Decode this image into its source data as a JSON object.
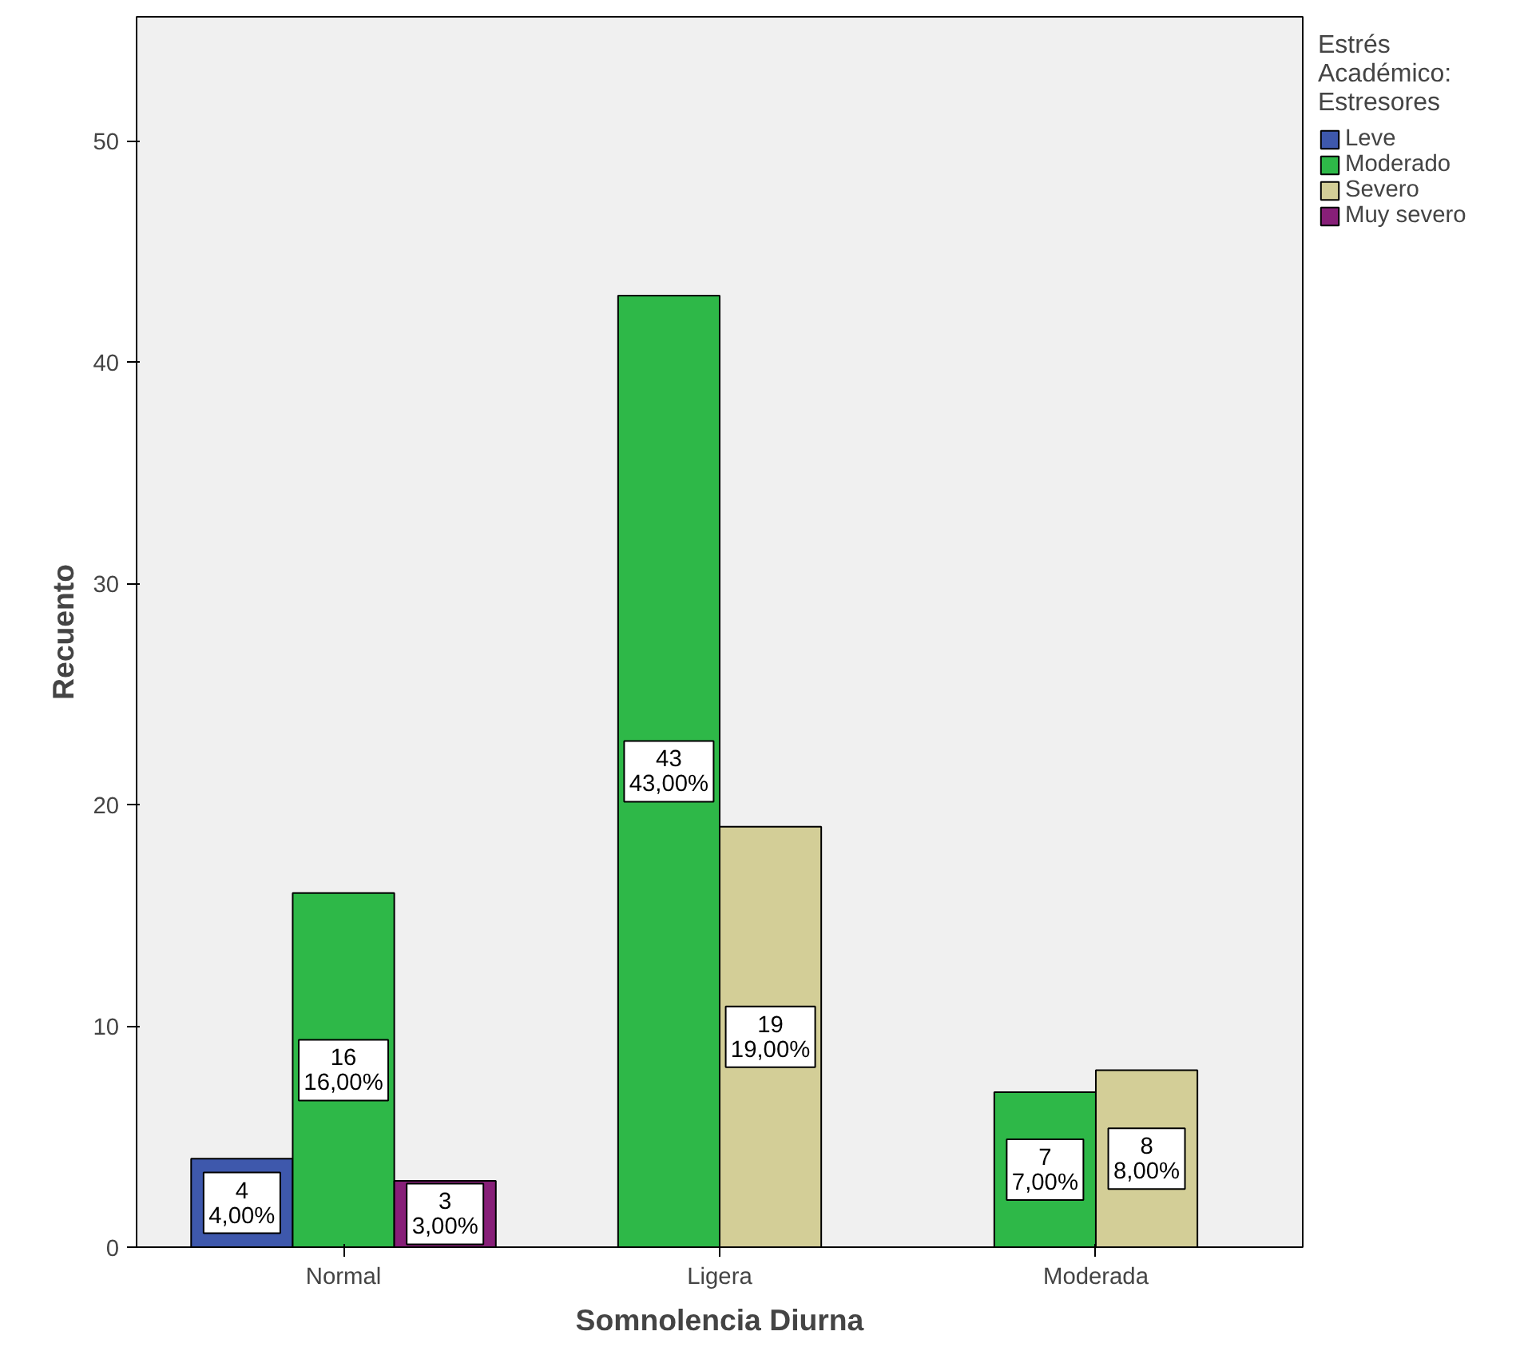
{
  "chart_data": {
    "type": "bar",
    "xlabel": "Somnolencia Diurna",
    "ylabel": "Recuento",
    "legend_title": "Estrés Académico: Estresores",
    "categories": [
      "Normal",
      "Ligera",
      "Moderada"
    ],
    "series": [
      {
        "name": "Leve",
        "color": "#3e58ac",
        "values": [
          4,
          null,
          null
        ],
        "value_labels": [
          "4\n4,00%",
          null,
          null
        ]
      },
      {
        "name": "Moderado",
        "color": "#2eb848",
        "values": [
          16,
          43,
          7
        ],
        "value_labels": [
          "16\n16,00%",
          "43\n43,00%",
          "7\n7,00%"
        ]
      },
      {
        "name": "Severo",
        "color": "#d3ce97",
        "values": [
          null,
          19,
          8
        ],
        "value_labels": [
          null,
          "19\n19,00%",
          "8\n8,00%"
        ]
      },
      {
        "name": "Muy severo",
        "color": "#871f78",
        "values": [
          3,
          null,
          null
        ],
        "value_labels": [
          "3\n3,00%",
          null,
          null
        ]
      }
    ],
    "ylim": [
      0,
      55.6
    ],
    "yticks": [
      0,
      10,
      20,
      30,
      40,
      50
    ],
    "grid": false,
    "legend": "right"
  }
}
